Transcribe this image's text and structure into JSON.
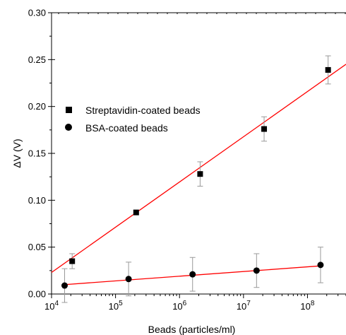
{
  "chart_data": {
    "type": "scatter",
    "xlabel": "Beads (particles/ml)",
    "ylabel": "ΔV (V)",
    "x_scale": "log",
    "xlim": [
      10000,
      400000000
    ],
    "ylim": [
      0,
      0.3
    ],
    "x_ticks": [
      {
        "value": 10000,
        "base": "10",
        "exp": "4"
      },
      {
        "value": 100000,
        "base": "10",
        "exp": "5"
      },
      {
        "value": 1000000,
        "base": "10",
        "exp": "6"
      },
      {
        "value": 10000000,
        "base": "10",
        "exp": "7"
      },
      {
        "value": 100000000,
        "base": "10",
        "exp": "8"
      }
    ],
    "y_ticks": [
      {
        "value": 0,
        "label": "0.00"
      },
      {
        "value": 0.05,
        "label": "0.05"
      },
      {
        "value": 0.1,
        "label": "0.10"
      },
      {
        "value": 0.15,
        "label": "0.15"
      },
      {
        "value": 0.2,
        "label": "0.20"
      },
      {
        "value": 0.25,
        "label": "0.25"
      },
      {
        "value": 0.3,
        "label": "0.30"
      }
    ],
    "grid": false,
    "legend_position": "top-left",
    "series": [
      {
        "name": "Streptavidin-coated beads",
        "marker": "square",
        "x": [
          21000,
          210000,
          2100000,
          21000000,
          210000000
        ],
        "y": [
          0.035,
          0.087,
          0.128,
          0.176,
          0.239
        ],
        "err": [
          0.008,
          0.002,
          0.013,
          0.013,
          0.015
        ],
        "fit": {
          "x": [
            10000,
            400000000
          ],
          "y": [
            0.023,
            0.245
          ]
        },
        "fit_color": "#ff0000"
      },
      {
        "name": "BSA-coated beads",
        "marker": "circle",
        "x": [
          16000,
          160000,
          1600000,
          16000000,
          160000000
        ],
        "y": [
          0.009,
          0.016,
          0.021,
          0.025,
          0.031
        ],
        "err": [
          0.018,
          0.018,
          0.018,
          0.018,
          0.019
        ],
        "fit": {
          "x": [
            16000,
            160000000
          ],
          "y": [
            0.01,
            0.03
          ]
        },
        "fit_color": "#ff0000"
      }
    ]
  }
}
